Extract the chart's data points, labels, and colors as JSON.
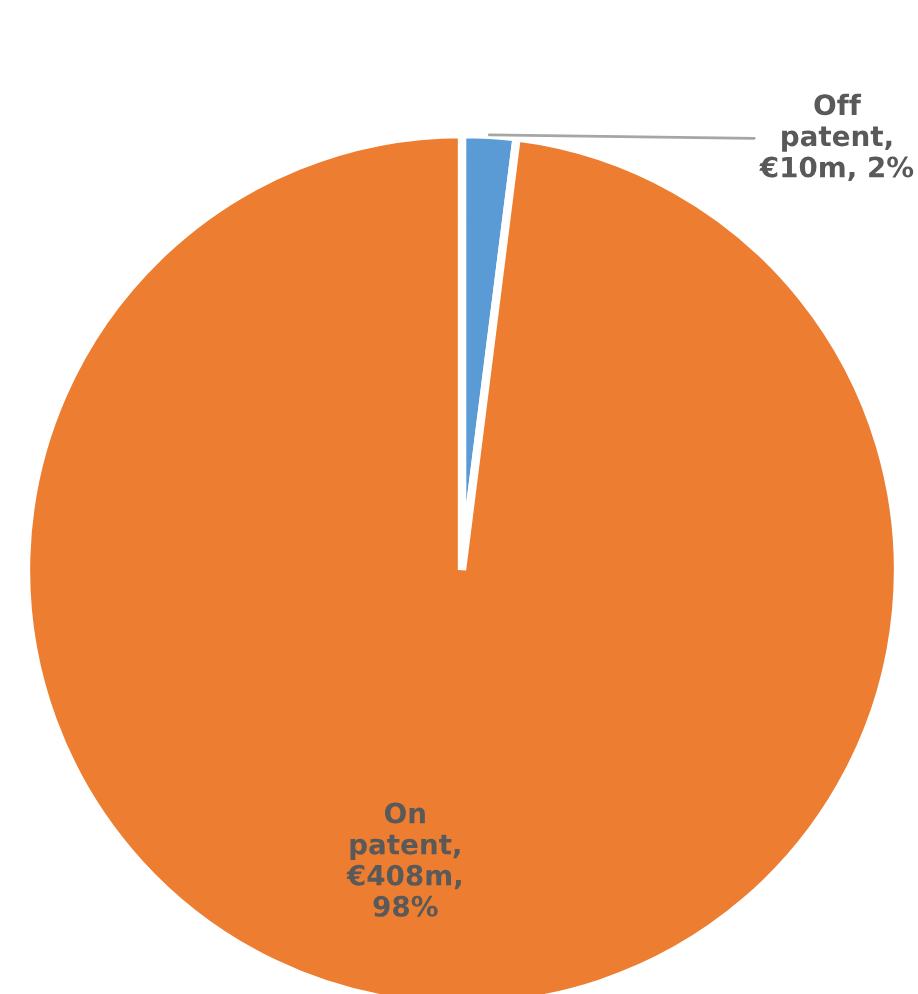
{
  "chart_data": {
    "type": "pie",
    "categories": [
      "Off patent, €10m, 2%",
      "On patent, €408m, 98%"
    ],
    "values": [
      2,
      98
    ],
    "colors": [
      "#5b9bd5",
      "#ed7d31"
    ]
  }
}
